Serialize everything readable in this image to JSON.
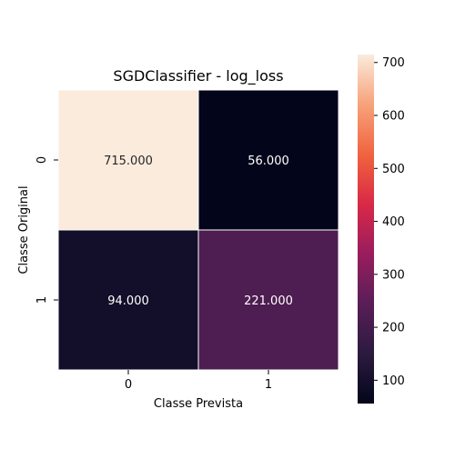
{
  "chart_data": {
    "type": "heatmap",
    "title": "SGDClassifier - log_loss",
    "xlabel": "Classe Prevista",
    "ylabel": "Classe Original",
    "x_categories": [
      "0",
      "1"
    ],
    "y_categories": [
      "0",
      "1"
    ],
    "values": [
      [
        715,
        56
      ],
      [
        94,
        221
      ]
    ],
    "cell_labels": [
      [
        "715.000",
        "56.000"
      ],
      [
        "94.000",
        "221.000"
      ]
    ],
    "colorbar": {
      "ticks": [
        "100",
        "200",
        "300",
        "400",
        "500",
        "600",
        "700"
      ],
      "range": [
        56,
        715
      ],
      "colormap": "rocket"
    }
  }
}
